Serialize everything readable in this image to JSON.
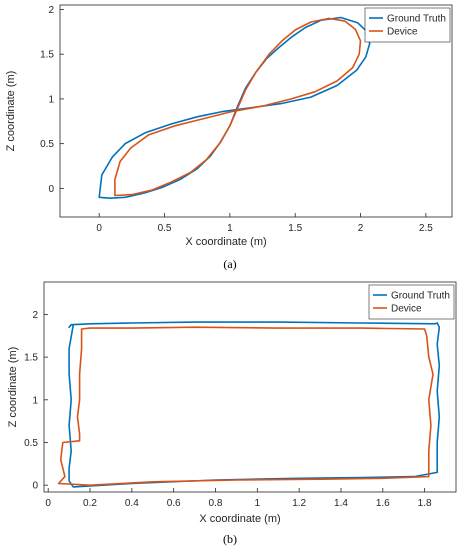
{
  "chart_data": [
    {
      "type": "line",
      "panel_label": "(a)",
      "xlabel": "X coordinate (m)",
      "ylabel": "Z coordinate (m)",
      "xlim": [
        -0.3,
        2.7
      ],
      "ylim": [
        -0.32,
        2.05
      ],
      "xticks": [
        0,
        0.5,
        1,
        1.5,
        2,
        2.5
      ],
      "xtick_labels": [
        "0",
        "0.5",
        "1",
        "1.5",
        "2",
        "2.5"
      ],
      "yticks": [
        0,
        0.5,
        1,
        1.5,
        2
      ],
      "ytick_labels": [
        "0",
        "0.5",
        "1",
        "1.5",
        "2"
      ],
      "legend_position": "top-right",
      "series": [
        {
          "name": "Ground Truth",
          "color": "#0072BD",
          "x": [
            0.0,
            0.02,
            0.1,
            0.2,
            0.35,
            0.55,
            0.75,
            0.95,
            1.15,
            1.4,
            1.62,
            1.82,
            1.97,
            2.04,
            2.07,
            2.05,
            1.98,
            1.85,
            1.7,
            1.58,
            1.48,
            1.38,
            1.28,
            1.2,
            1.12,
            1.06,
            1.0,
            0.93,
            0.85,
            0.75,
            0.62,
            0.48,
            0.35,
            0.2,
            0.08,
            0.0
          ],
          "y": [
            -0.1,
            0.15,
            0.35,
            0.5,
            0.62,
            0.72,
            0.8,
            0.86,
            0.9,
            0.95,
            1.02,
            1.15,
            1.32,
            1.47,
            1.62,
            1.75,
            1.85,
            1.91,
            1.88,
            1.8,
            1.7,
            1.58,
            1.45,
            1.3,
            1.12,
            0.92,
            0.7,
            0.52,
            0.36,
            0.22,
            0.1,
            0.01,
            -0.05,
            -0.1,
            -0.11,
            -0.1
          ]
        },
        {
          "name": "Device",
          "color": "#D95319",
          "x": [
            0.12,
            0.12,
            0.16,
            0.24,
            0.38,
            0.58,
            0.8,
            1.02,
            1.25,
            1.47,
            1.65,
            1.82,
            1.94,
            1.99,
            2.0,
            1.96,
            1.88,
            1.76,
            1.62,
            1.5,
            1.4,
            1.3,
            1.2,
            1.12,
            1.06,
            1.0,
            0.92,
            0.82,
            0.7,
            0.55,
            0.4,
            0.25,
            0.12
          ],
          "y": [
            -0.08,
            0.1,
            0.3,
            0.45,
            0.6,
            0.7,
            0.78,
            0.86,
            0.92,
            1.0,
            1.08,
            1.2,
            1.35,
            1.5,
            1.65,
            1.78,
            1.87,
            1.9,
            1.86,
            1.77,
            1.65,
            1.5,
            1.3,
            1.1,
            0.9,
            0.7,
            0.5,
            0.32,
            0.18,
            0.07,
            -0.02,
            -0.07,
            -0.08
          ]
        }
      ]
    },
    {
      "type": "line",
      "panel_label": "(b)",
      "xlabel": "X coordinate (m)",
      "ylabel": "Z coordinate (m)",
      "xlim": [
        -0.02,
        1.95
      ],
      "ylim": [
        -0.08,
        2.38
      ],
      "xticks": [
        0,
        0.2,
        0.4,
        0.6,
        0.8,
        1,
        1.2,
        1.4,
        1.6,
        1.8
      ],
      "xtick_labels": [
        "0",
        "0.2",
        "0.4",
        "0.6",
        "0.8",
        "1",
        "1.2",
        "1.4",
        "1.6",
        "1.8"
      ],
      "yticks": [
        0,
        0.5,
        1,
        1.5,
        2
      ],
      "ytick_labels": [
        "0",
        "0.5",
        "1",
        "1.5",
        "2"
      ],
      "legend_position": "top-right",
      "series": [
        {
          "name": "Ground Truth",
          "color": "#0072BD",
          "x": [
            0.12,
            0.1,
            0.1,
            0.11,
            0.1,
            0.11,
            0.1,
            0.1,
            0.12,
            0.4,
            0.8,
            1.2,
            1.5,
            1.75,
            1.86,
            1.86,
            1.87,
            1.86,
            1.87,
            1.86,
            1.87,
            1.86,
            1.85,
            1.5,
            1.1,
            0.7,
            0.4,
            0.2,
            0.11,
            0.1
          ],
          "y": [
            1.88,
            1.6,
            1.3,
            1.0,
            0.7,
            0.4,
            0.2,
            0.05,
            -0.02,
            0.02,
            0.06,
            0.08,
            0.09,
            0.1,
            0.15,
            0.5,
            0.8,
            1.1,
            1.4,
            1.65,
            1.85,
            1.9,
            1.89,
            1.9,
            1.91,
            1.91,
            1.9,
            1.89,
            1.88,
            1.85
          ]
        },
        {
          "name": "Device",
          "color": "#D95319",
          "x": [
            0.16,
            0.16,
            0.15,
            0.15,
            0.14,
            0.15,
            0.15,
            0.15,
            0.07,
            0.06,
            0.08,
            0.05,
            0.2,
            0.5,
            0.9,
            1.3,
            1.6,
            1.82,
            1.82,
            1.83,
            1.82,
            1.84,
            1.82,
            1.81,
            1.8,
            1.5,
            1.1,
            0.7,
            0.4,
            0.2,
            0.16
          ],
          "y": [
            1.83,
            1.6,
            1.3,
            1.0,
            0.8,
            0.6,
            0.55,
            0.52,
            0.5,
            0.3,
            0.1,
            0.02,
            0.0,
            0.04,
            0.06,
            0.07,
            0.08,
            0.1,
            0.4,
            0.7,
            1.0,
            1.3,
            1.5,
            1.75,
            1.83,
            1.84,
            1.84,
            1.85,
            1.84,
            1.84,
            1.83
          ]
        }
      ]
    }
  ]
}
